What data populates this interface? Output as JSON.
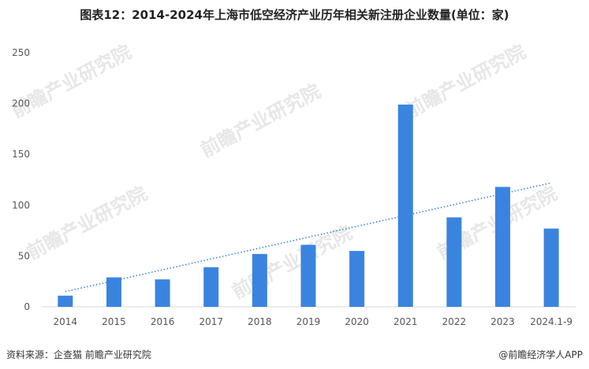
{
  "chart_data": {
    "type": "bar",
    "title": "图表12：2014-2024年上海市低空经济产业历年相关新注册企业数量(单位：家)",
    "categories": [
      "2014",
      "2015",
      "2016",
      "2017",
      "2018",
      "2019",
      "2020",
      "2021",
      "2022",
      "2023",
      "2024.1-9"
    ],
    "values": [
      11,
      29,
      27,
      39,
      52,
      61,
      55,
      199,
      88,
      118,
      77
    ],
    "ylim": [
      0,
      250
    ],
    "yticks": [
      0,
      50,
      100,
      150,
      200,
      250
    ],
    "xlabel": "",
    "ylabel": "",
    "grid": false,
    "bar_color": "#3a84e0",
    "trendline": {
      "type": "linear",
      "style": "dotted",
      "color": "#3a84e0",
      "start_value": 15,
      "end_value": 122
    }
  },
  "footer": {
    "source": "资料来源：企查猫 前瞻产业研究院",
    "credit": "@前瞻经济学人APP"
  },
  "watermark": {
    "text": "前瞻产业研究院"
  }
}
